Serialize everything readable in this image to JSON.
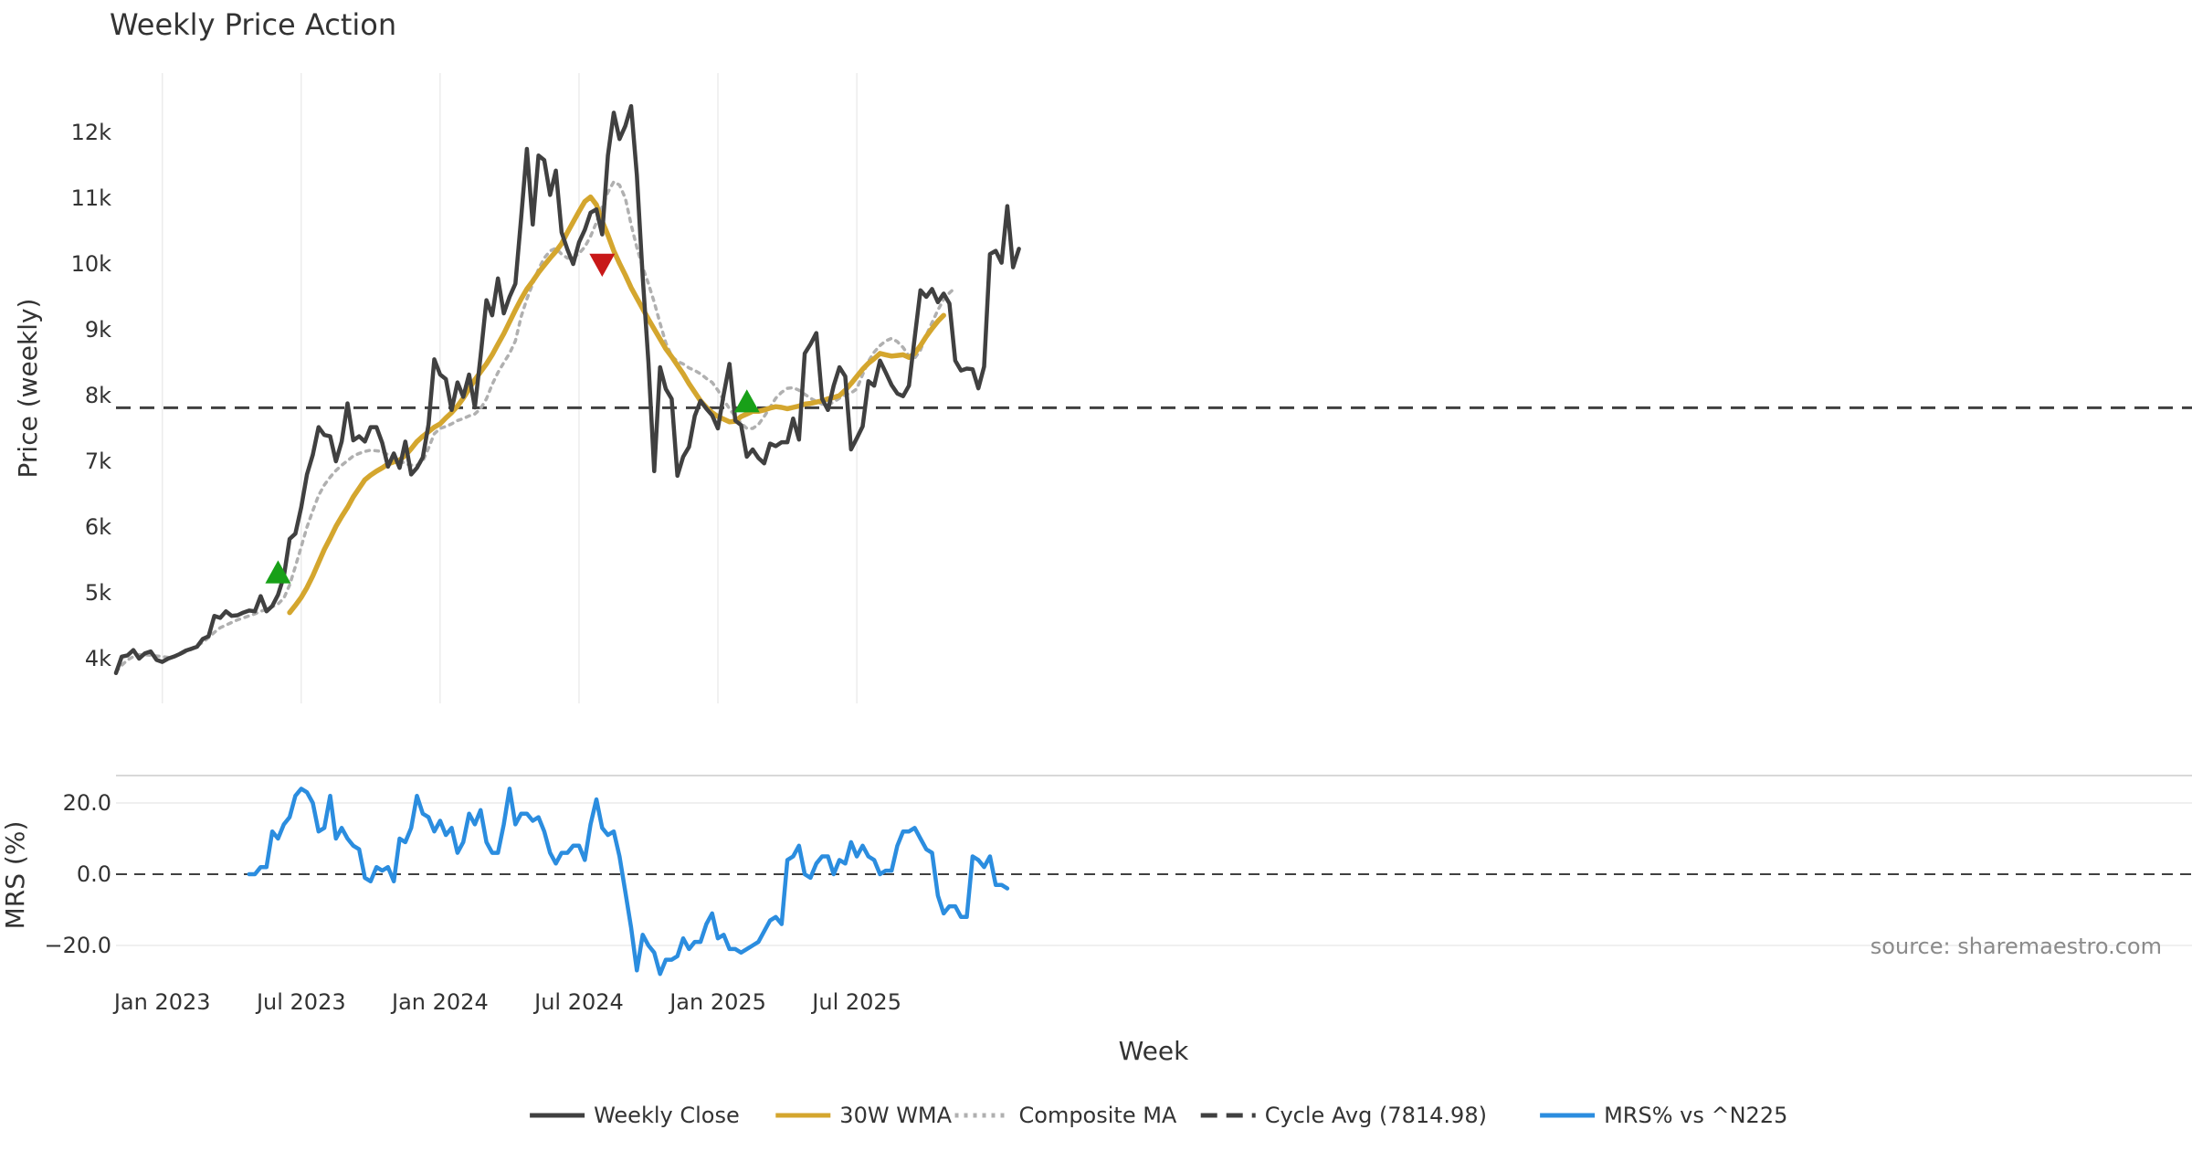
{
  "chart_data": [
    {
      "type": "line",
      "title": "Weekly Price Action",
      "ylabel": "Price (weekly)",
      "xlabel": "Week",
      "ylim": [
        3650,
        12900
      ],
      "yticks": [
        4000,
        5000,
        6000,
        7000,
        8000,
        9000,
        10000,
        11000,
        12000
      ],
      "ytick_labels": [
        "4k",
        "5k",
        "6k",
        "7k",
        "8k",
        "9k",
        "10k",
        "11k",
        "12k"
      ],
      "x_weeks_range": [
        0,
        150
      ],
      "x_note": "x values are week index starting at first plotted week (Nov 2022)",
      "xticks": [
        {
          "week": 8,
          "label": "Jan 2023"
        },
        {
          "week": 32,
          "label": "Jul 2023"
        },
        {
          "week": 56,
          "label": "Jan 2024"
        },
        {
          "week": 80,
          "label": "Jul 2024"
        },
        {
          "week": 104,
          "label": "Jan 2025"
        },
        {
          "week": 128,
          "label": "Jul 2025"
        }
      ],
      "grid": "vertical",
      "series": [
        {
          "name": "Weekly Close",
          "color": "#404040",
          "style": "solid",
          "start_week": 0,
          "values": [
            3780,
            4030,
            4050,
            4130,
            4000,
            4080,
            4110,
            3980,
            3950,
            4000,
            4030,
            4070,
            4120,
            4150,
            4180,
            4300,
            4340,
            4650,
            4620,
            4720,
            4650,
            4660,
            4700,
            4730,
            4720,
            4950,
            4720,
            4800,
            4970,
            5250,
            5820,
            5900,
            6300,
            6800,
            7100,
            7520,
            7400,
            7380,
            7000,
            7300,
            7880,
            7320,
            7380,
            7300,
            7520,
            7520,
            7280,
            6920,
            7120,
            6900,
            7300,
            6800,
            6900,
            7060,
            7560,
            8550,
            8320,
            8250,
            7780,
            8200,
            7980,
            8320,
            7820,
            8600,
            9450,
            9220,
            9780,
            9250,
            9500,
            9700,
            10700,
            11750,
            10600,
            11650,
            11580,
            11050,
            11420,
            10480,
            10220,
            10000,
            10330,
            10520,
            10780,
            10830,
            10450,
            11650,
            12300,
            11900,
            12100,
            12400,
            11350,
            9800,
            8500,
            6850,
            8430,
            8100,
            7950,
            6780,
            7070,
            7220,
            7690,
            7920,
            7800,
            7700,
            7500,
            8020,
            8480,
            7620,
            7550,
            7070,
            7180,
            7050,
            6970,
            7270,
            7230,
            7290,
            7290,
            7650,
            7330,
            8640,
            8780,
            8950,
            7950,
            7780,
            8150,
            8430,
            8290,
            7180,
            7350,
            7530,
            8220,
            8150,
            8530,
            8350,
            8160,
            8030,
            7990,
            8150,
            8880,
            9600,
            9500,
            9620,
            9420,
            9550,
            9400,
            8530,
            8380,
            8410,
            8400,
            8110,
            8440,
            10150,
            10200,
            10020,
            10880,
            9950,
            10230
          ]
        },
        {
          "name": "30W WMA",
          "color": "#d4a62e",
          "style": "solid",
          "start_week": 30,
          "values": [
            4700,
            4810,
            4930,
            5080,
            5260,
            5460,
            5660,
            5830,
            6010,
            6160,
            6300,
            6460,
            6590,
            6720,
            6790,
            6850,
            6900,
            6960,
            6990,
            7020,
            7090,
            7190,
            7300,
            7380,
            7450,
            7520,
            7570,
            7660,
            7740,
            7840,
            7960,
            8100,
            8240,
            8360,
            8480,
            8620,
            8780,
            8940,
            9120,
            9300,
            9470,
            9620,
            9740,
            9870,
            9980,
            10090,
            10190,
            10310,
            10480,
            10640,
            10800,
            10950,
            11020,
            10900,
            10650,
            10440,
            10200,
            10010,
            9830,
            9640,
            9480,
            9320,
            9160,
            9010,
            8860,
            8710,
            8590,
            8460,
            8330,
            8180,
            8050,
            7920,
            7820,
            7740,
            7680,
            7640,
            7600,
            7610,
            7680,
            7720,
            7760,
            7760,
            7780,
            7810,
            7830,
            7820,
            7800,
            7820,
            7840,
            7870,
            7880,
            7900,
            7920,
            7950,
            7970,
            8000,
            8080,
            8180,
            8290,
            8400,
            8490,
            8560,
            8640,
            8620,
            8600,
            8610,
            8620,
            8580,
            8640,
            8760,
            8900,
            9020,
            9130,
            9220
          ]
        },
        {
          "name": "Composite MA",
          "color": "#b0b0b0",
          "style": "dotted",
          "start_week": 0,
          "values": [
            3800,
            3900,
            3980,
            4030,
            4060,
            4060,
            4050,
            4040,
            4030,
            4020,
            4030,
            4060,
            4100,
            4140,
            4190,
            4250,
            4320,
            4400,
            4470,
            4510,
            4550,
            4590,
            4620,
            4650,
            4680,
            4720,
            4750,
            4790,
            4830,
            4920,
            5120,
            5400,
            5700,
            6000,
            6250,
            6480,
            6640,
            6760,
            6860,
            6940,
            7010,
            7080,
            7120,
            7150,
            7170,
            7160,
            7150,
            7100,
            7060,
            7020,
            6960,
            6940,
            6940,
            7000,
            7200,
            7420,
            7500,
            7530,
            7570,
            7620,
            7650,
            7690,
            7720,
            7800,
            7950,
            8170,
            8350,
            8500,
            8640,
            8830,
            9200,
            9470,
            9700,
            9920,
            10090,
            10200,
            10240,
            10150,
            10090,
            10090,
            10160,
            10260,
            10420,
            10630,
            10870,
            11090,
            11250,
            11200,
            11000,
            10600,
            10250,
            9950,
            9700,
            9420,
            9100,
            8800,
            8600,
            8520,
            8480,
            8420,
            8380,
            8330,
            8260,
            8200,
            8080,
            7930,
            7800,
            7680,
            7580,
            7500,
            7500,
            7560,
            7680,
            7820,
            7960,
            8050,
            8110,
            8120,
            8080,
            8020,
            7960,
            7910,
            7870,
            7860,
            7900,
            7960,
            8010,
            8040,
            8100,
            8320,
            8520,
            8660,
            8760,
            8830,
            8870,
            8820,
            8730,
            8600,
            8570,
            8690,
            8920,
            9110,
            9300,
            9460,
            9560,
            9640
          ]
        },
        {
          "name": "Cycle Avg (7814.98)",
          "color": "#404040",
          "style": "dashed",
          "constant": 7814.98
        }
      ],
      "markers": [
        {
          "type": "buy",
          "symbol": "triangle-up",
          "color": "#18a018",
          "week": 28,
          "value": 5300
        },
        {
          "type": "sell",
          "symbol": "triangle-down",
          "color": "#c81818",
          "week": 84,
          "value": 10000
        },
        {
          "type": "buy",
          "symbol": "triangle-up",
          "color": "#18a018",
          "week": 109,
          "value": 7900
        }
      ]
    },
    {
      "type": "line",
      "ylabel": "MRS (%)",
      "ylim": [
        -29,
        29
      ],
      "yticks": [
        -20,
        0,
        20
      ],
      "ytick_labels": [
        "−20.0",
        "0.0",
        "20.0"
      ],
      "series": [
        {
          "name": "MRS% vs ^N225",
          "color": "#2b8ddf",
          "style": "solid",
          "start_week": 23,
          "values": [
            0,
            0,
            2,
            2,
            12,
            10,
            14,
            16,
            22,
            24,
            23,
            20,
            12,
            13,
            22,
            10,
            13,
            10,
            8,
            7,
            -1,
            -2,
            2,
            1,
            2,
            -2,
            10,
            9,
            13,
            22,
            17,
            16,
            12,
            15,
            11,
            13,
            6,
            9,
            17,
            14,
            18,
            9,
            6,
            6,
            14,
            24,
            14,
            17,
            17,
            15,
            16,
            12,
            6,
            3,
            6,
            6,
            8,
            8,
            4,
            14,
            21,
            13,
            11,
            12,
            5,
            -5,
            -15,
            -27,
            -17,
            -20,
            -22,
            -28,
            -24,
            -24,
            -23,
            -18,
            -21,
            -19,
            -19,
            -14,
            -11,
            -18,
            -17,
            -21,
            -21,
            -22,
            -21,
            -20,
            -19,
            -16,
            -13,
            -12,
            -14,
            4,
            5,
            8,
            0,
            -1,
            3,
            5,
            5,
            0,
            4,
            3,
            9,
            5,
            8,
            5,
            4,
            0,
            1,
            1,
            8,
            12,
            12,
            13,
            10,
            7,
            6,
            -6,
            -11,
            -9,
            -9,
            -12,
            -12,
            5,
            4,
            2,
            5,
            -3,
            -3,
            -4
          ]
        },
        {
          "name": "zero",
          "color": "#404040",
          "style": "dashed",
          "constant": 0
        }
      ]
    }
  ],
  "xaxis": {
    "label": "Week"
  },
  "legend": {
    "position": "bottom",
    "entries": [
      {
        "label": "Weekly Close",
        "color": "#404040",
        "style": "solid"
      },
      {
        "label": "30W WMA",
        "color": "#d4a62e",
        "style": "solid"
      },
      {
        "label": "Composite MA",
        "color": "#b0b0b0",
        "style": "dotted"
      },
      {
        "label": "Cycle Avg (7814.98)",
        "color": "#404040",
        "style": "dashed"
      },
      {
        "label": "MRS% vs ^N225",
        "color": "#2b8ddf",
        "style": "solid"
      }
    ]
  },
  "source_note": "source: sharemaestro.com"
}
